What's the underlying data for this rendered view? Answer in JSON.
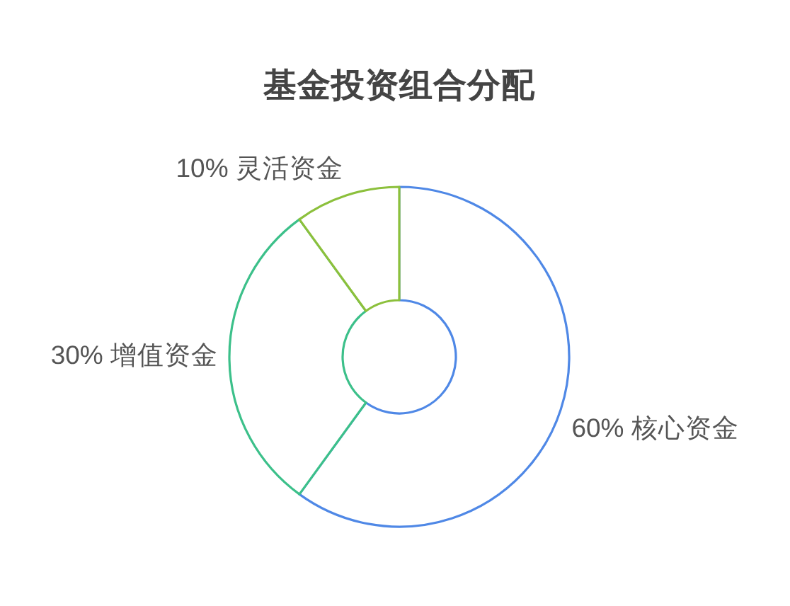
{
  "chart_data": {
    "type": "donut",
    "title": "基金投资组合分配",
    "categories": [
      "核心资金",
      "增值资金",
      "灵活资金"
    ],
    "values": [
      60,
      30,
      10
    ],
    "value_labels": [
      "60%",
      "30%",
      "10%"
    ],
    "colors": [
      "#4f88e6",
      "#3cc08a",
      "#8cc03c"
    ]
  }
}
